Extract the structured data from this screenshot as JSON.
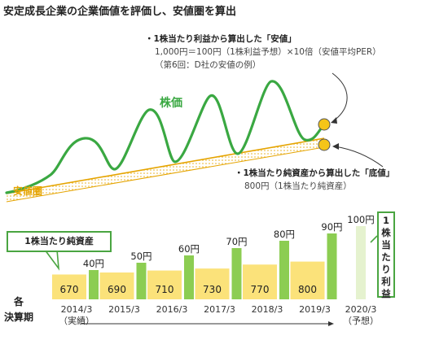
{
  "title": "安定成長企業の企業価値を評価し、安値圏を算出",
  "annotations": {
    "eps_heading": "・1株当たり利益から算出した「安値」",
    "eps_formula": "1,000円＝100円（1株利益予想）×10倍（安値平均PER）",
    "eps_note": "（第6回：D社の安値の例）",
    "bvps_heading": "・1株当たり純資産から算出した「底値」",
    "bvps_value": "800円（1株当たり純資産）"
  },
  "labels": {
    "stock_price": "株価",
    "safe_zone": "安値圏",
    "bvps_label": "1株当たり純資産",
    "eps_label": "1株当たり利益",
    "fiscal_period_line1": "各",
    "fiscal_period_line2": "決算期"
  },
  "colors": {
    "bar_bvps": "#fbe27a",
    "bar_eps": "#8ccd52",
    "bar_eps_forecast": "#e5f2cf",
    "stock_line": "#3aa842",
    "safe_zone": "#e5a400",
    "marker": "#f5c518"
  },
  "chart_data": {
    "type": "bar",
    "categories": [
      "2014/3",
      "2015/3",
      "2016/3",
      "2017/3",
      "2018/3",
      "2019/3",
      "2020/3"
    ],
    "category_notes": [
      "（実績）",
      "",
      "",
      "",
      "",
      "",
      "（予想）"
    ],
    "series": [
      {
        "name": "1株当たり純資産",
        "values": [
          670,
          690,
          710,
          730,
          770,
          800,
          null
        ],
        "value_labels": [
          "670",
          "690",
          "710",
          "730",
          "770",
          "800",
          ""
        ]
      },
      {
        "name": "1株当たり利益",
        "values": [
          40,
          50,
          60,
          70,
          80,
          90,
          100
        ],
        "value_labels": [
          "40円",
          "50円",
          "60円",
          "70円",
          "80円",
          "90円",
          "100円"
        ]
      }
    ]
  }
}
